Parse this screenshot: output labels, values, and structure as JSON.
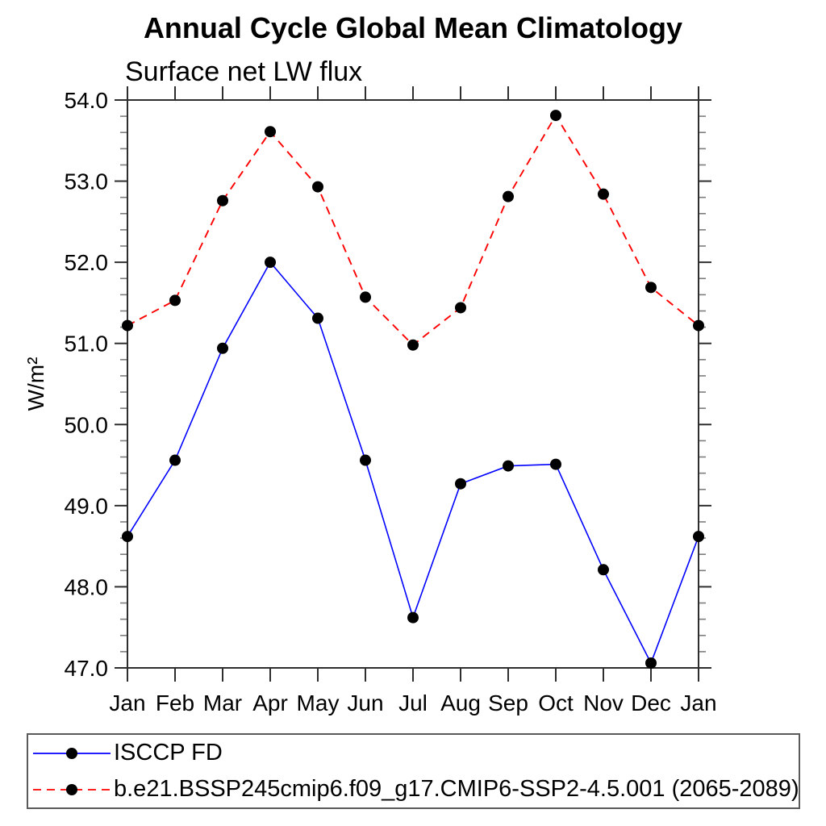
{
  "chart_data": {
    "type": "line",
    "title": "Annual Cycle Global Mean Climatology",
    "subtitle": "Surface net LW flux",
    "ylabel": "W/m²",
    "xlabel": "",
    "categories": [
      "Jan",
      "Feb",
      "Mar",
      "Apr",
      "May",
      "Jun",
      "Jul",
      "Aug",
      "Sep",
      "Oct",
      "Nov",
      "Dec",
      "Jan"
    ],
    "ylim": [
      47.0,
      54.0
    ],
    "ytick_step": 1.0,
    "ytick_minor_step": 0.2,
    "ytick_labels": [
      "47.0",
      "48.0",
      "49.0",
      "50.0",
      "51.0",
      "52.0",
      "53.0",
      "54.0"
    ],
    "grid": false,
    "legend_position": "bottom-left",
    "axis_color": "#2e2e2e",
    "minor_tick_color": "#7d7d7d",
    "series": [
      {
        "name": "ISCCP FD",
        "color": "#0000ff",
        "line_style": "solid",
        "marker": "filled-circle",
        "marker_color": "#000000",
        "values": [
          48.62,
          49.56,
          50.94,
          52.0,
          51.31,
          49.56,
          47.62,
          49.27,
          49.49,
          49.51,
          48.21,
          47.06,
          48.62
        ]
      },
      {
        "name": "b.e21.BSSP245cmip6.f09_g17.CMIP6-SSP2-4.5.001 (2065-2089)",
        "color": "#ff0000",
        "line_style": "dashed",
        "marker": "filled-circle",
        "marker_color": "#000000",
        "values": [
          51.22,
          51.53,
          52.76,
          53.61,
          52.93,
          51.57,
          50.98,
          51.44,
          52.81,
          53.81,
          52.84,
          51.69,
          51.22
        ]
      }
    ]
  }
}
